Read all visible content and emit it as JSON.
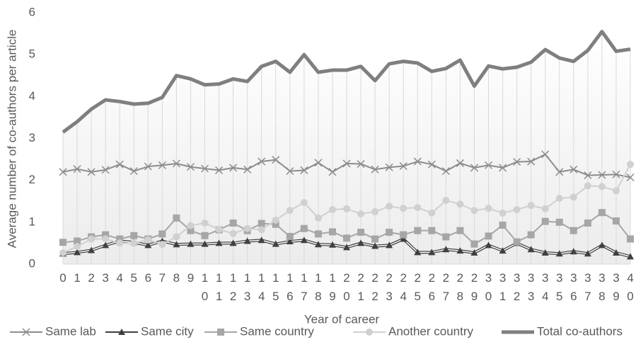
{
  "chart_data": {
    "type": "line",
    "x_label": "Year of career",
    "y_label": "Average number of co-authors per article",
    "categories": [
      "0",
      "1",
      "2",
      "3",
      "4",
      "5",
      "6",
      "7",
      "8",
      "9",
      "10",
      "11",
      "12",
      "13",
      "14",
      "15",
      "16",
      "17",
      "18",
      "19",
      "20",
      "21",
      "22",
      "23",
      "24",
      "25",
      "26",
      "27",
      "28",
      "29",
      "30",
      "31",
      "32",
      "33",
      "34",
      "35",
      "36",
      "37",
      "38",
      "39",
      "40"
    ],
    "ylim": [
      0,
      6
    ],
    "yticks": [
      0,
      1,
      2,
      3,
      4,
      5,
      6
    ],
    "legend": "bottom",
    "series": [
      {
        "name": "Same lab",
        "color": "#8c8c8c",
        "marker": "x",
        "values": [
          2.2,
          2.27,
          2.2,
          2.25,
          2.38,
          2.22,
          2.33,
          2.36,
          2.4,
          2.32,
          2.28,
          2.24,
          2.3,
          2.26,
          2.45,
          2.49,
          2.22,
          2.24,
          2.42,
          2.2,
          2.4,
          2.39,
          2.26,
          2.31,
          2.34,
          2.45,
          2.38,
          2.22,
          2.41,
          2.3,
          2.36,
          2.3,
          2.44,
          2.45,
          2.62,
          2.2,
          2.26,
          2.12,
          2.13,
          2.14,
          2.07
        ]
      },
      {
        "name": "Same city",
        "color": "#404040",
        "marker": "triangle",
        "values": [
          0.25,
          0.28,
          0.33,
          0.45,
          0.55,
          0.52,
          0.45,
          0.55,
          0.47,
          0.48,
          0.48,
          0.5,
          0.5,
          0.55,
          0.57,
          0.48,
          0.54,
          0.57,
          0.47,
          0.46,
          0.4,
          0.5,
          0.43,
          0.45,
          0.6,
          0.28,
          0.28,
          0.35,
          0.32,
          0.27,
          0.45,
          0.32,
          0.5,
          0.35,
          0.27,
          0.25,
          0.3,
          0.25,
          0.45,
          0.27,
          0.18
        ]
      },
      {
        "name": "Same country",
        "color": "#a6a6a6",
        "marker": "square",
        "values": [
          0.52,
          0.55,
          0.65,
          0.7,
          0.6,
          0.68,
          0.6,
          0.72,
          1.1,
          0.8,
          0.68,
          0.82,
          0.98,
          0.8,
          0.97,
          0.95,
          0.66,
          0.85,
          0.72,
          0.77,
          0.62,
          0.76,
          0.6,
          0.76,
          0.7,
          0.8,
          0.8,
          0.65,
          0.8,
          0.48,
          0.67,
          0.93,
          0.53,
          0.7,
          1.02,
          1.0,
          0.8,
          0.98,
          1.23,
          1.03,
          0.6
        ]
      },
      {
        "name": "Another country",
        "color": "#d0d0d0",
        "marker": "circle",
        "values": [
          0.27,
          0.42,
          0.6,
          0.6,
          0.5,
          0.5,
          0.58,
          0.47,
          0.65,
          0.92,
          0.98,
          0.83,
          0.73,
          0.85,
          0.82,
          1.05,
          1.28,
          1.47,
          1.1,
          1.3,
          1.32,
          1.2,
          1.25,
          1.38,
          1.33,
          1.35,
          1.22,
          1.52,
          1.43,
          1.28,
          1.33,
          1.22,
          1.3,
          1.4,
          1.32,
          1.57,
          1.6,
          1.87,
          1.85,
          1.75,
          2.38
        ]
      },
      {
        "name": "Total co-authors",
        "color": "#7f7f7f",
        "marker": "none",
        "width": 5,
        "values": [
          3.15,
          3.4,
          3.7,
          3.92,
          3.88,
          3.82,
          3.84,
          3.98,
          4.5,
          4.42,
          4.28,
          4.3,
          4.42,
          4.36,
          4.72,
          4.84,
          4.58,
          5.0,
          4.58,
          4.63,
          4.63,
          4.72,
          4.38,
          4.78,
          4.84,
          4.8,
          4.6,
          4.67,
          4.87,
          4.25,
          4.73,
          4.66,
          4.7,
          4.82,
          5.12,
          4.92,
          4.84,
          5.1,
          5.55,
          5.08,
          5.13
        ]
      }
    ]
  }
}
